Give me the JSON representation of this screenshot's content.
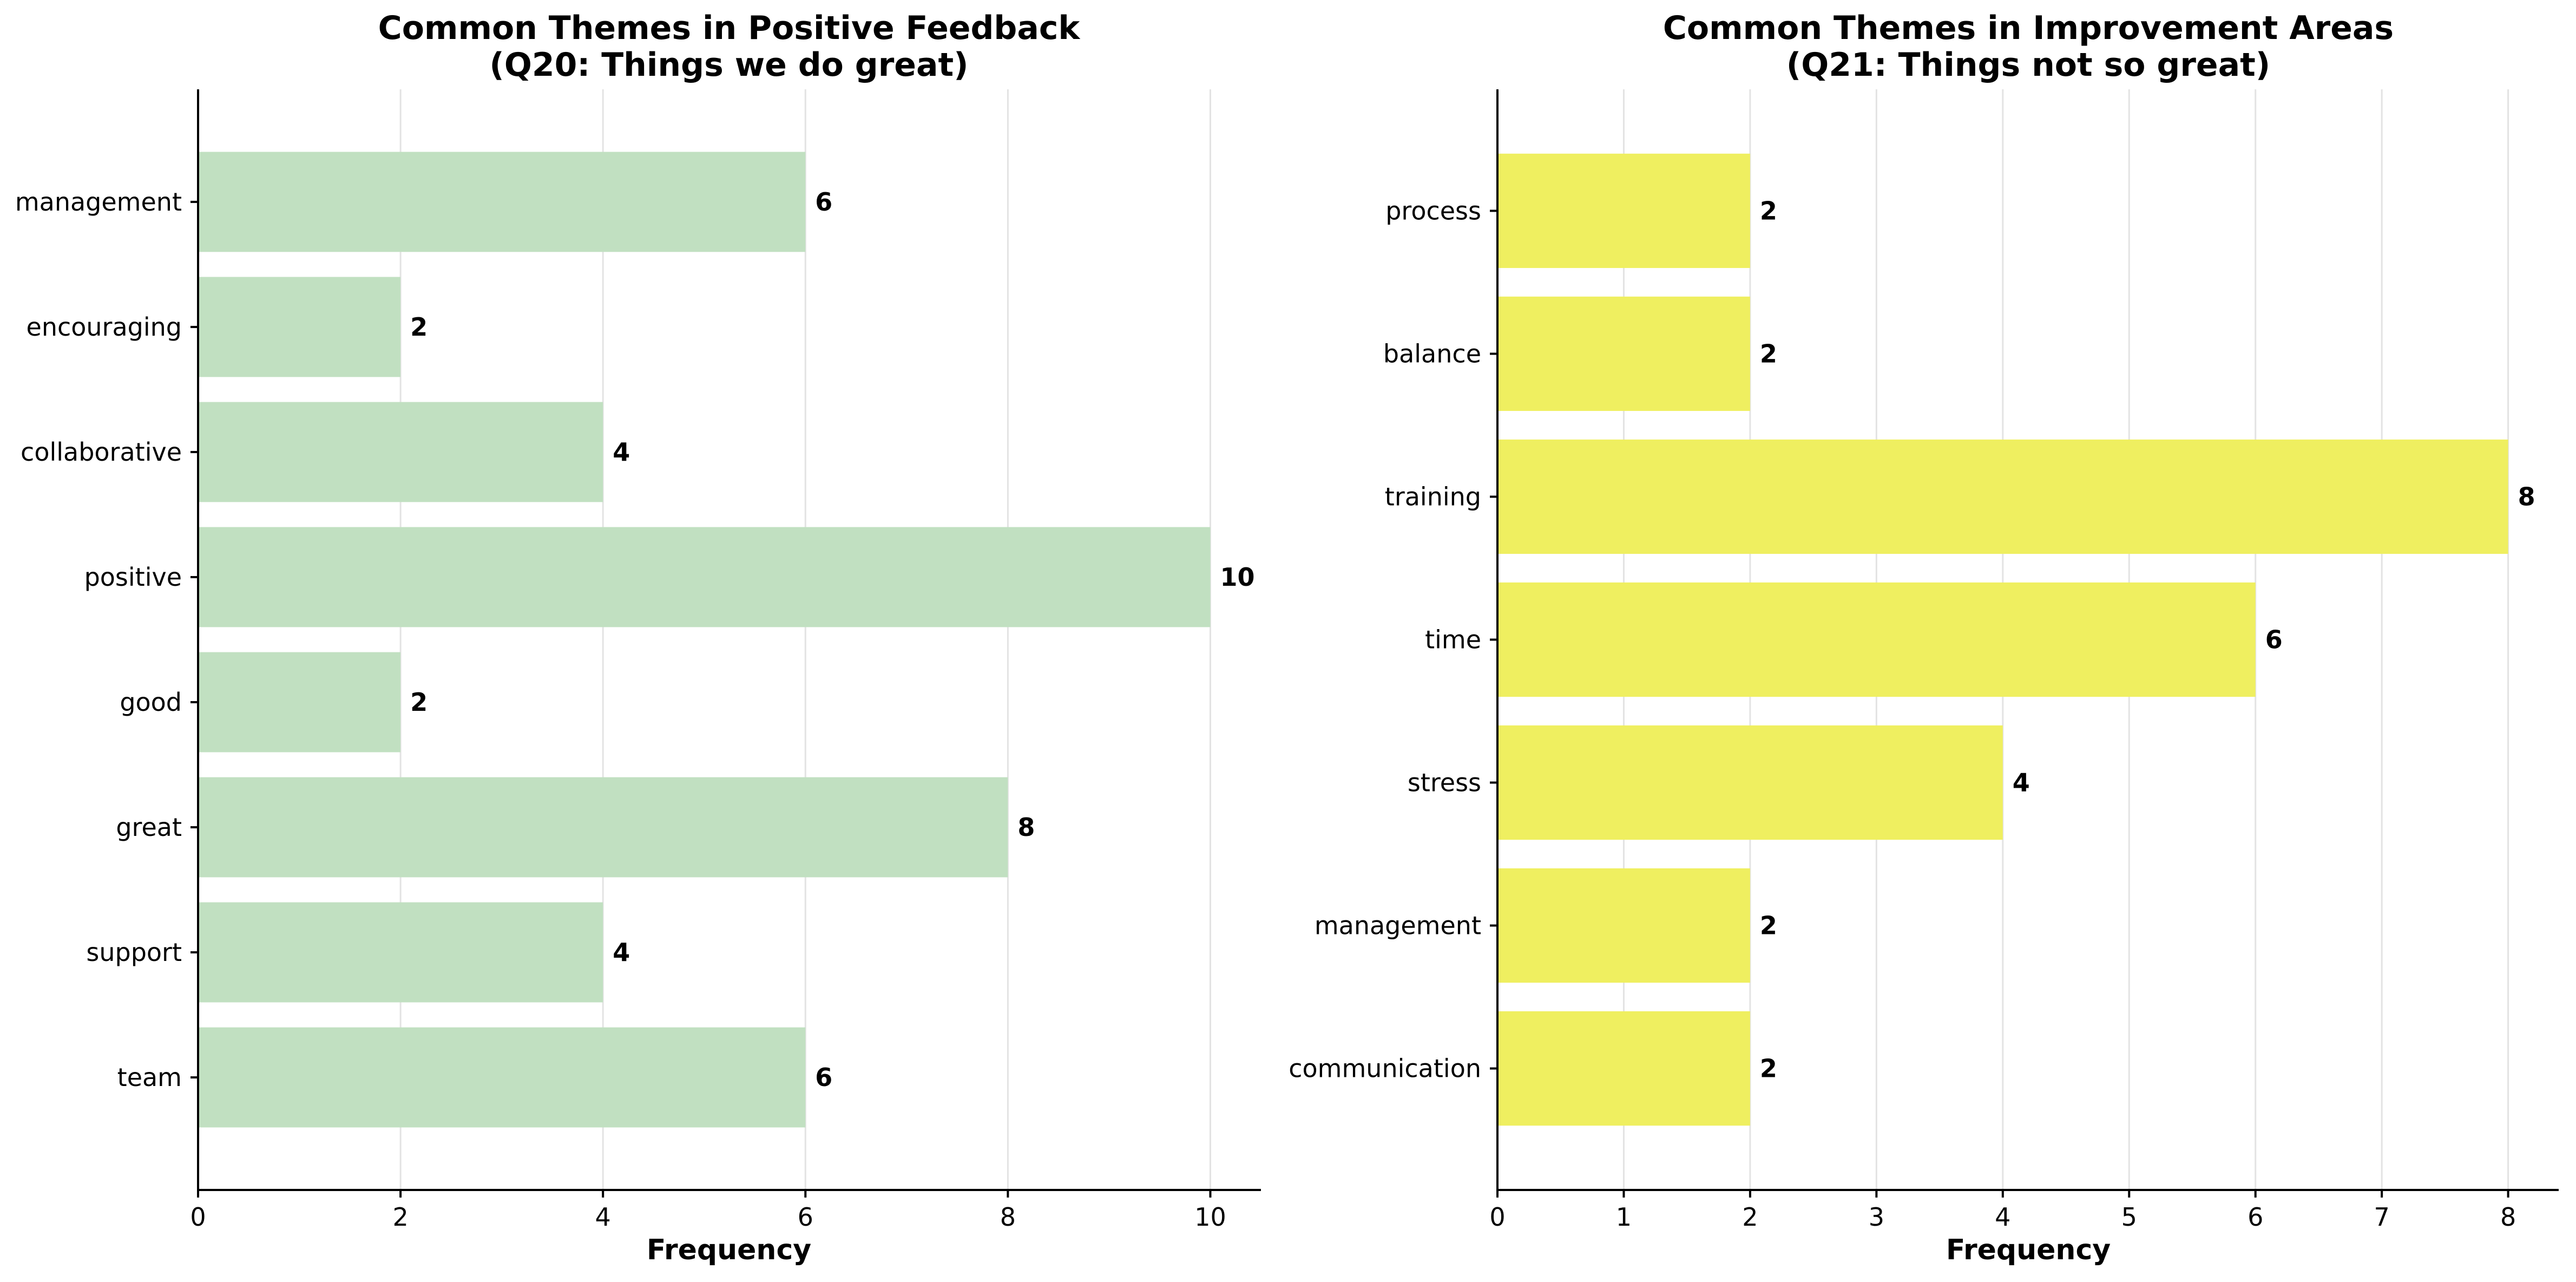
{
  "chart_data": [
    {
      "type": "bar",
      "orientation": "horizontal",
      "title": "Common Themes in Positive Feedback",
      "subtitle": "(Q20: Things we do great)",
      "xlabel": "Frequency",
      "ylabel": "",
      "categories": [
        "management",
        "encouraging",
        "collaborative",
        "positive",
        "good",
        "great",
        "support",
        "team"
      ],
      "values": [
        6,
        2,
        4,
        10,
        2,
        8,
        4,
        6
      ],
      "xlim": [
        0,
        10.5
      ],
      "xticks": [
        "0",
        "2",
        "4",
        "6",
        "8",
        "10"
      ],
      "grid": "vertical",
      "bar_color": "#c1e0c1"
    },
    {
      "type": "bar",
      "orientation": "horizontal",
      "title": "Common Themes in Improvement Areas",
      "subtitle": "(Q21: Things not so great)",
      "xlabel": "Frequency",
      "ylabel": "",
      "categories": [
        "process",
        "balance",
        "training",
        "time",
        "stress",
        "management",
        "communication"
      ],
      "values": [
        2,
        2,
        8,
        6,
        4,
        2,
        2
      ],
      "xlim": [
        0,
        8.4
      ],
      "xticks": [
        "0",
        "1",
        "2",
        "3",
        "4",
        "5",
        "6",
        "7",
        "8"
      ],
      "grid": "vertical",
      "bar_color": "#efef60"
    }
  ]
}
